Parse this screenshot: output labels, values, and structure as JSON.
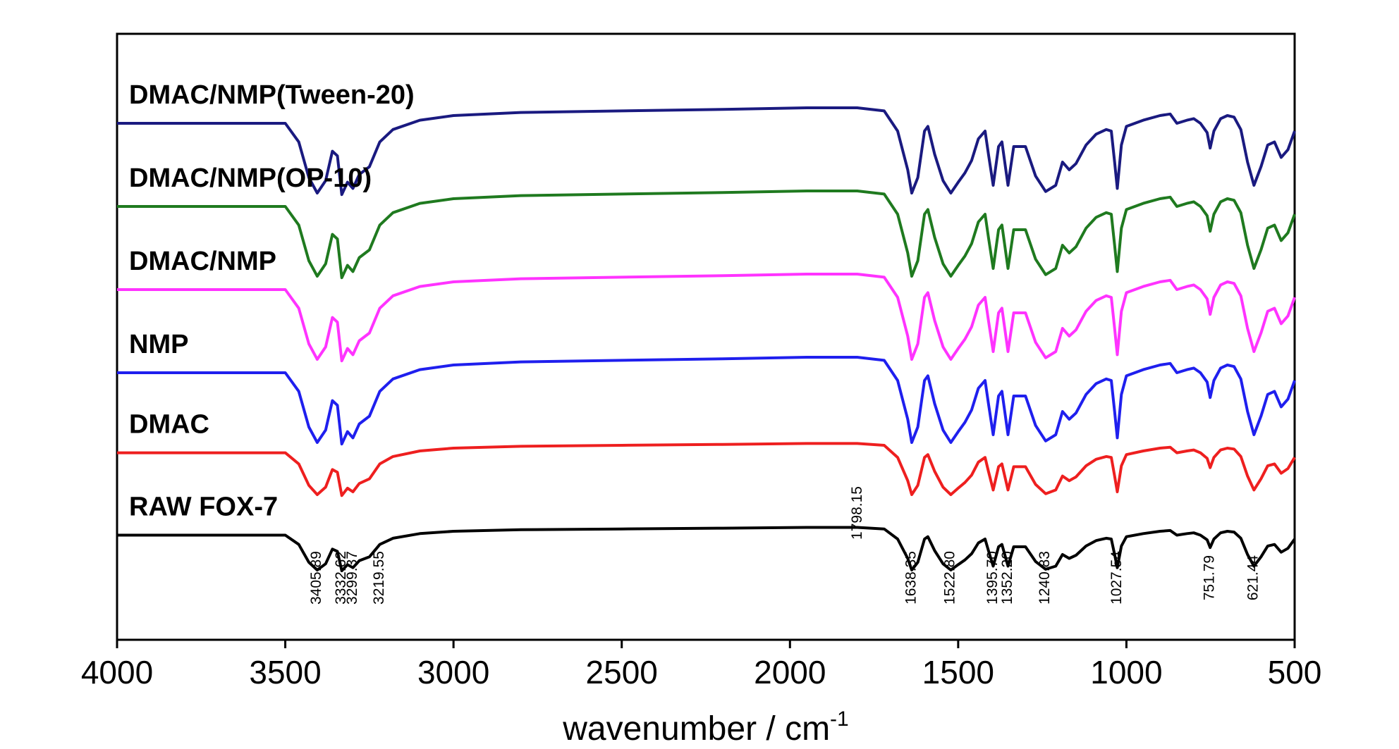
{
  "chart_data": {
    "type": "line",
    "xlabel": "wavenumber / cm",
    "xlabel_sup": "-1",
    "xlim": [
      4000,
      500
    ],
    "x_reversed": true,
    "x_ticks": [
      4000,
      3500,
      3000,
      2500,
      2000,
      1500,
      1000,
      500
    ],
    "x_tick_labels": [
      "4000",
      "3500",
      "3000",
      "2500",
      "2000",
      "1500",
      "1000",
      "500"
    ],
    "ylabel": "",
    "y_ticks_shown": false,
    "grid": false,
    "legend": "labels placed above each curve at left",
    "colors": {
      "DMAC/NMP(Tween-20)": "#1a1a80",
      "DMAC/NMP(OP-10)": "#1f7a1f",
      "DMAC/NMP": "#ff33ff",
      "NMP": "#1f1fee",
      "DMAC": "#ee1f1f",
      "RAW FOX-7": "#000000"
    },
    "series": [
      {
        "name": "DMAC/NMP(Tween-20)",
        "color": "#1a1a80",
        "offset": 5,
        "intensity": 1.0,
        "x": [
          4000,
          3600,
          3500,
          3460,
          3430,
          3405,
          3380,
          3360,
          3345,
          3332,
          3315,
          3299,
          3280,
          3250,
          3219,
          3180,
          3100,
          3000,
          2800,
          2500,
          2200,
          1950,
          1800,
          1720,
          1680,
          1650,
          1638,
          1620,
          1600,
          1590,
          1570,
          1545,
          1522,
          1500,
          1480,
          1460,
          1440,
          1420,
          1410,
          1396,
          1380,
          1370,
          1352,
          1335,
          1300,
          1270,
          1240,
          1210,
          1190,
          1170,
          1150,
          1120,
          1090,
          1060,
          1045,
          1035,
          1027,
          1015,
          1000,
          950,
          900,
          870,
          850,
          820,
          800,
          780,
          760,
          751,
          740,
          720,
          700,
          680,
          660,
          640,
          621,
          600,
          580,
          560,
          540,
          520,
          500
        ],
        "y": [
          0.5,
          0.5,
          0.5,
          0.38,
          0.15,
          0.05,
          0.13,
          0.32,
          0.29,
          0.04,
          0.12,
          0.08,
          0.17,
          0.22,
          0.38,
          0.46,
          0.52,
          0.55,
          0.57,
          0.58,
          0.59,
          0.6,
          0.6,
          0.58,
          0.45,
          0.2,
          0.05,
          0.15,
          0.45,
          0.48,
          0.3,
          0.13,
          0.05,
          0.12,
          0.18,
          0.26,
          0.4,
          0.45,
          0.3,
          0.1,
          0.35,
          0.38,
          0.1,
          0.35,
          0.35,
          0.16,
          0.06,
          0.1,
          0.25,
          0.2,
          0.24,
          0.36,
          0.43,
          0.46,
          0.45,
          0.25,
          0.08,
          0.36,
          0.48,
          0.52,
          0.55,
          0.56,
          0.5,
          0.52,
          0.53,
          0.5,
          0.44,
          0.34,
          0.45,
          0.53,
          0.55,
          0.54,
          0.46,
          0.25,
          0.1,
          0.22,
          0.36,
          0.38,
          0.28,
          0.33,
          0.45
        ]
      },
      {
        "name": "DMAC/NMP(OP-10)",
        "color": "#1f7a1f",
        "offset": 4,
        "intensity": 1.0,
        "x": [
          4000,
          3600,
          3500,
          3460,
          3430,
          3405,
          3380,
          3360,
          3345,
          3332,
          3315,
          3299,
          3280,
          3250,
          3219,
          3180,
          3100,
          3000,
          2800,
          2500,
          2200,
          1950,
          1800,
          1720,
          1680,
          1650,
          1638,
          1620,
          1600,
          1590,
          1570,
          1545,
          1522,
          1500,
          1480,
          1460,
          1440,
          1420,
          1410,
          1396,
          1380,
          1370,
          1352,
          1335,
          1300,
          1270,
          1240,
          1210,
          1190,
          1170,
          1150,
          1120,
          1090,
          1060,
          1045,
          1035,
          1027,
          1015,
          1000,
          950,
          900,
          870,
          850,
          820,
          800,
          780,
          760,
          751,
          740,
          720,
          700,
          680,
          660,
          640,
          621,
          600,
          580,
          560,
          540,
          520,
          500
        ],
        "y": [
          0.5,
          0.5,
          0.5,
          0.38,
          0.15,
          0.05,
          0.13,
          0.32,
          0.29,
          0.04,
          0.12,
          0.08,
          0.17,
          0.22,
          0.38,
          0.46,
          0.52,
          0.55,
          0.57,
          0.58,
          0.59,
          0.6,
          0.6,
          0.58,
          0.45,
          0.2,
          0.05,
          0.15,
          0.45,
          0.48,
          0.3,
          0.13,
          0.05,
          0.12,
          0.18,
          0.26,
          0.4,
          0.45,
          0.3,
          0.1,
          0.35,
          0.38,
          0.1,
          0.35,
          0.35,
          0.16,
          0.06,
          0.1,
          0.25,
          0.2,
          0.24,
          0.36,
          0.43,
          0.46,
          0.45,
          0.25,
          0.08,
          0.36,
          0.48,
          0.52,
          0.55,
          0.56,
          0.5,
          0.52,
          0.53,
          0.5,
          0.44,
          0.34,
          0.45,
          0.53,
          0.55,
          0.54,
          0.46,
          0.25,
          0.1,
          0.22,
          0.36,
          0.38,
          0.28,
          0.33,
          0.45
        ]
      },
      {
        "name": "DMAC/NMP",
        "color": "#ff33ff",
        "offset": 3,
        "intensity": 1.0,
        "x": [
          4000,
          3600,
          3500,
          3460,
          3430,
          3405,
          3380,
          3360,
          3345,
          3332,
          3315,
          3299,
          3280,
          3250,
          3219,
          3180,
          3100,
          3000,
          2800,
          2500,
          2200,
          1950,
          1800,
          1720,
          1680,
          1650,
          1638,
          1620,
          1600,
          1590,
          1570,
          1545,
          1522,
          1500,
          1480,
          1460,
          1440,
          1420,
          1410,
          1396,
          1380,
          1370,
          1352,
          1335,
          1300,
          1270,
          1240,
          1210,
          1190,
          1170,
          1150,
          1120,
          1090,
          1060,
          1045,
          1035,
          1027,
          1015,
          1000,
          950,
          900,
          870,
          850,
          820,
          800,
          780,
          760,
          751,
          740,
          720,
          700,
          680,
          660,
          640,
          621,
          600,
          580,
          560,
          540,
          520,
          500
        ],
        "y": [
          0.5,
          0.5,
          0.5,
          0.38,
          0.15,
          0.05,
          0.13,
          0.32,
          0.29,
          0.04,
          0.12,
          0.08,
          0.17,
          0.22,
          0.38,
          0.46,
          0.52,
          0.55,
          0.57,
          0.58,
          0.59,
          0.6,
          0.6,
          0.58,
          0.45,
          0.2,
          0.05,
          0.15,
          0.45,
          0.48,
          0.3,
          0.13,
          0.05,
          0.12,
          0.18,
          0.26,
          0.4,
          0.45,
          0.3,
          0.1,
          0.35,
          0.38,
          0.1,
          0.35,
          0.35,
          0.16,
          0.06,
          0.1,
          0.25,
          0.2,
          0.24,
          0.36,
          0.43,
          0.46,
          0.45,
          0.25,
          0.08,
          0.36,
          0.48,
          0.52,
          0.55,
          0.56,
          0.5,
          0.52,
          0.53,
          0.5,
          0.44,
          0.34,
          0.45,
          0.53,
          0.55,
          0.54,
          0.46,
          0.25,
          0.1,
          0.22,
          0.36,
          0.38,
          0.28,
          0.33,
          0.45
        ]
      },
      {
        "name": "NMP",
        "color": "#1f1fee",
        "offset": 2,
        "intensity": 1.0,
        "x": [
          4000,
          3600,
          3500,
          3460,
          3430,
          3405,
          3380,
          3360,
          3345,
          3332,
          3315,
          3299,
          3280,
          3250,
          3219,
          3180,
          3100,
          3000,
          2800,
          2500,
          2200,
          1950,
          1800,
          1720,
          1680,
          1650,
          1638,
          1620,
          1600,
          1590,
          1570,
          1545,
          1522,
          1500,
          1480,
          1460,
          1440,
          1420,
          1410,
          1396,
          1380,
          1370,
          1352,
          1335,
          1300,
          1270,
          1240,
          1210,
          1190,
          1170,
          1150,
          1120,
          1090,
          1060,
          1045,
          1035,
          1027,
          1015,
          1000,
          950,
          900,
          870,
          850,
          820,
          800,
          780,
          760,
          751,
          740,
          720,
          700,
          680,
          660,
          640,
          621,
          600,
          580,
          560,
          540,
          520,
          500
        ],
        "y": [
          0.5,
          0.5,
          0.5,
          0.38,
          0.15,
          0.05,
          0.13,
          0.32,
          0.29,
          0.04,
          0.12,
          0.08,
          0.17,
          0.22,
          0.38,
          0.46,
          0.52,
          0.55,
          0.57,
          0.58,
          0.59,
          0.6,
          0.6,
          0.58,
          0.45,
          0.2,
          0.05,
          0.15,
          0.45,
          0.48,
          0.3,
          0.13,
          0.05,
          0.12,
          0.18,
          0.26,
          0.4,
          0.45,
          0.3,
          0.1,
          0.35,
          0.38,
          0.1,
          0.35,
          0.35,
          0.16,
          0.06,
          0.1,
          0.25,
          0.2,
          0.24,
          0.36,
          0.43,
          0.46,
          0.45,
          0.25,
          0.08,
          0.36,
          0.48,
          0.52,
          0.55,
          0.56,
          0.5,
          0.52,
          0.53,
          0.5,
          0.44,
          0.34,
          0.45,
          0.53,
          0.55,
          0.54,
          0.46,
          0.25,
          0.1,
          0.22,
          0.36,
          0.38,
          0.28,
          0.33,
          0.45
        ]
      },
      {
        "name": "DMAC",
        "color": "#ee1f1f",
        "offset": 1,
        "intensity": 0.6,
        "x": [
          4000,
          3600,
          3500,
          3460,
          3430,
          3405,
          3380,
          3360,
          3345,
          3332,
          3315,
          3299,
          3280,
          3250,
          3219,
          3180,
          3100,
          3000,
          2800,
          2500,
          2200,
          1950,
          1800,
          1720,
          1680,
          1650,
          1638,
          1620,
          1600,
          1590,
          1570,
          1545,
          1522,
          1500,
          1480,
          1460,
          1440,
          1420,
          1410,
          1396,
          1380,
          1370,
          1352,
          1335,
          1300,
          1270,
          1240,
          1210,
          1190,
          1170,
          1150,
          1120,
          1090,
          1060,
          1045,
          1035,
          1027,
          1015,
          1000,
          950,
          900,
          870,
          850,
          820,
          800,
          780,
          760,
          751,
          740,
          720,
          700,
          680,
          660,
          640,
          621,
          600,
          580,
          560,
          540,
          520,
          500
        ],
        "y": [
          0.5,
          0.5,
          0.5,
          0.38,
          0.15,
          0.05,
          0.13,
          0.32,
          0.29,
          0.04,
          0.12,
          0.08,
          0.17,
          0.22,
          0.38,
          0.46,
          0.52,
          0.55,
          0.57,
          0.58,
          0.59,
          0.6,
          0.6,
          0.58,
          0.45,
          0.2,
          0.05,
          0.15,
          0.45,
          0.48,
          0.3,
          0.13,
          0.05,
          0.12,
          0.18,
          0.26,
          0.4,
          0.45,
          0.3,
          0.1,
          0.35,
          0.38,
          0.1,
          0.35,
          0.35,
          0.16,
          0.06,
          0.1,
          0.25,
          0.2,
          0.24,
          0.36,
          0.43,
          0.46,
          0.45,
          0.25,
          0.08,
          0.36,
          0.48,
          0.52,
          0.55,
          0.56,
          0.5,
          0.52,
          0.53,
          0.5,
          0.44,
          0.34,
          0.45,
          0.53,
          0.55,
          0.54,
          0.46,
          0.25,
          0.1,
          0.22,
          0.36,
          0.38,
          0.28,
          0.33,
          0.45
        ]
      },
      {
        "name": "RAW FOX-7",
        "color": "#000000",
        "offset": 0,
        "intensity": 0.5,
        "x": [
          4000,
          3600,
          3500,
          3460,
          3430,
          3405,
          3380,
          3360,
          3345,
          3332,
          3315,
          3299,
          3280,
          3250,
          3219,
          3180,
          3100,
          3000,
          2800,
          2500,
          2200,
          1950,
          1800,
          1720,
          1680,
          1650,
          1638,
          1620,
          1600,
          1590,
          1570,
          1545,
          1522,
          1500,
          1480,
          1460,
          1440,
          1420,
          1410,
          1396,
          1380,
          1370,
          1352,
          1335,
          1300,
          1270,
          1240,
          1210,
          1190,
          1170,
          1150,
          1120,
          1090,
          1060,
          1045,
          1035,
          1027,
          1015,
          1000,
          950,
          900,
          870,
          850,
          820,
          800,
          780,
          760,
          751,
          740,
          720,
          700,
          680,
          660,
          640,
          621,
          600,
          580,
          560,
          540,
          520,
          500
        ],
        "y": [
          0.5,
          0.5,
          0.5,
          0.38,
          0.15,
          0.05,
          0.13,
          0.32,
          0.29,
          0.04,
          0.12,
          0.08,
          0.17,
          0.22,
          0.38,
          0.46,
          0.52,
          0.55,
          0.57,
          0.58,
          0.59,
          0.6,
          0.6,
          0.58,
          0.45,
          0.2,
          0.05,
          0.15,
          0.45,
          0.48,
          0.3,
          0.13,
          0.05,
          0.12,
          0.18,
          0.26,
          0.4,
          0.45,
          0.3,
          0.1,
          0.35,
          0.38,
          0.1,
          0.35,
          0.35,
          0.16,
          0.06,
          0.1,
          0.25,
          0.2,
          0.24,
          0.36,
          0.43,
          0.46,
          0.45,
          0.25,
          0.08,
          0.36,
          0.48,
          0.52,
          0.55,
          0.56,
          0.5,
          0.52,
          0.53,
          0.5,
          0.44,
          0.34,
          0.45,
          0.53,
          0.55,
          0.54,
          0.46,
          0.25,
          0.1,
          0.22,
          0.36,
          0.38,
          0.28,
          0.33,
          0.45
        ]
      }
    ],
    "annotations": [
      {
        "text": "3405.89",
        "x": 3405.89
      },
      {
        "text": "3332.62",
        "x": 3332.62
      },
      {
        "text": "3299.37",
        "x": 3299.37
      },
      {
        "text": "3219.55",
        "x": 3219.55
      },
      {
        "text": "1798.15",
        "x": 1798.15
      },
      {
        "text": "1638.35",
        "x": 1638.35
      },
      {
        "text": "1522.80",
        "x": 1522.8
      },
      {
        "text": "1395.70",
        "x": 1395.7
      },
      {
        "text": "1352.20",
        "x": 1352.2
      },
      {
        "text": "1240.83",
        "x": 1240.83
      },
      {
        "text": "1027.54",
        "x": 1027.54
      },
      {
        "text": "751.79",
        "x": 751.79
      },
      {
        "text": "621.44",
        "x": 621.44
      }
    ]
  }
}
